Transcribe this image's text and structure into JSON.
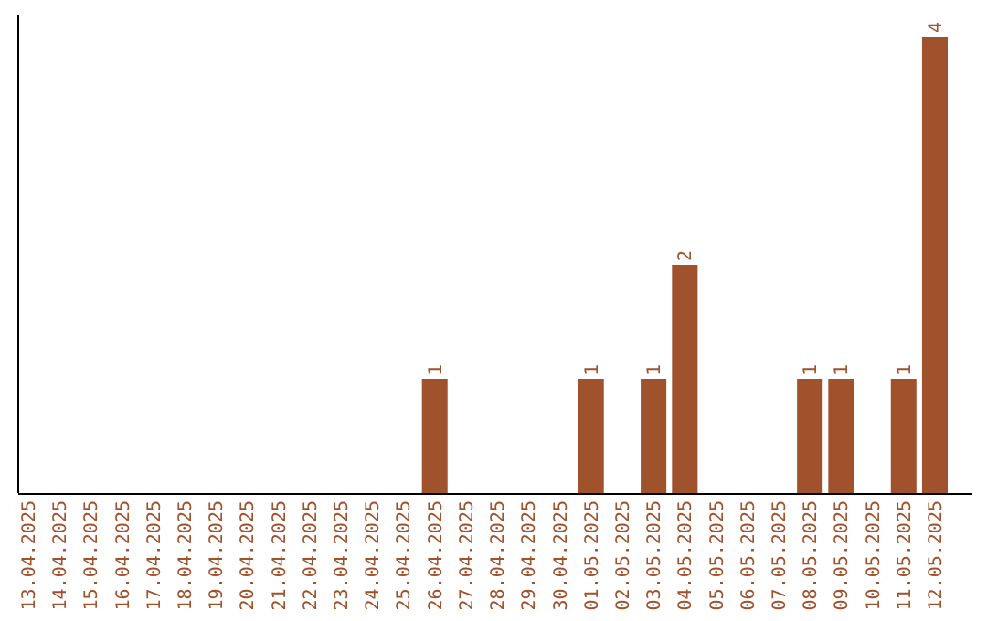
{
  "chart_data": {
    "type": "bar",
    "categories": [
      "13.04.2025",
      "14.04.2025",
      "15.04.2025",
      "16.04.2025",
      "17.04.2025",
      "18.04.2025",
      "19.04.2025",
      "20.04.2025",
      "21.04.2025",
      "22.04.2025",
      "23.04.2025",
      "24.04.2025",
      "25.04.2025",
      "26.04.2025",
      "27.04.2025",
      "28.04.2025",
      "29.04.2025",
      "30.04.2025",
      "01.05.2025",
      "02.05.2025",
      "03.05.2025",
      "04.05.2025",
      "05.05.2025",
      "06.05.2025",
      "07.05.2025",
      "08.05.2025",
      "09.05.2025",
      "10.05.2025",
      "11.05.2025",
      "12.05.2025"
    ],
    "values": [
      null,
      null,
      null,
      null,
      null,
      null,
      null,
      null,
      null,
      null,
      null,
      null,
      null,
      1,
      null,
      null,
      null,
      null,
      1,
      null,
      1,
      2,
      null,
      null,
      null,
      1,
      1,
      null,
      1,
      4
    ],
    "data_labels": true,
    "color": "#a0522d"
  }
}
